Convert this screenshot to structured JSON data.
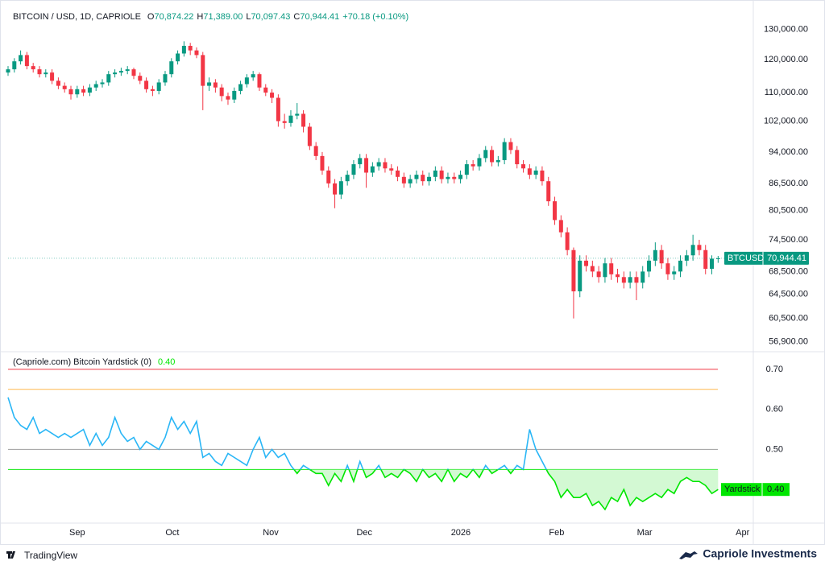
{
  "chart_data": [
    {
      "type": "candlestick",
      "title": "BITCOIN / USD, 1D, CAPRIOLE",
      "header_values": [
        {
          "key": "O",
          "text": "70,874.22"
        },
        {
          "key": "H",
          "text": "71,389.00"
        },
        {
          "key": "L",
          "text": "70,097.43"
        },
        {
          "key": "C",
          "text": "70,944.41"
        }
      ],
      "change_label": "+70.18 (+0.10%)",
      "log_scale": true,
      "up_color": "#089981",
      "down_color": "#f23645",
      "xlim": [
        0,
        118.6
      ],
      "ylim": [
        55400,
        137600
      ],
      "yticks": [
        {
          "value": 130000,
          "label": "130,000.00"
        },
        {
          "value": 120000,
          "label": "120,000.00"
        },
        {
          "value": 110000,
          "label": "110,000.00"
        },
        {
          "value": 102000,
          "label": "102,000.00"
        },
        {
          "value": 94000,
          "label": "94,000.00"
        },
        {
          "value": 86500,
          "label": "86,500.00"
        },
        {
          "value": 80500,
          "label": "80,500.00"
        },
        {
          "value": 74500,
          "label": "74,500.00"
        },
        {
          "value": 68500,
          "label": "68,500.00"
        },
        {
          "value": 64500,
          "label": "64,500.00"
        },
        {
          "value": 60500,
          "label": "60,500.00"
        },
        {
          "value": 56900,
          "label": "56,900.00"
        }
      ],
      "series": [
        {
          "name": "BTCUSD",
          "last_value_label": "70,944.41",
          "open": [
            116000,
            117000,
            119500,
            121500,
            118000,
            117000,
            115500,
            116000,
            113500,
            112000,
            111000,
            109500,
            111000,
            110000,
            111500,
            112500,
            113000,
            115500,
            116000,
            116500,
            117000,
            115000,
            113500,
            111000,
            110500,
            113000,
            115500,
            119500,
            122000,
            124500,
            123000,
            121500,
            112000,
            113000,
            111500,
            109000,
            108000,
            110500,
            112500,
            114500,
            115500,
            111500,
            110000,
            108500,
            102000,
            101500,
            103500,
            104000,
            100500,
            95500,
            93000,
            89500,
            86500,
            84000,
            87000,
            88500,
            91000,
            92500,
            89000,
            90500,
            91500,
            90000,
            89500,
            88000,
            86500,
            87500,
            88500,
            87000,
            88000,
            89500,
            87500,
            88000,
            87500,
            88500,
            91000,
            90500,
            92500,
            94500,
            91500,
            92000,
            96500,
            94500,
            91000,
            90000,
            88500,
            89500,
            87000,
            82500,
            78500,
            76000,
            72500,
            65000,
            70500,
            69500,
            68500,
            67500,
            70000,
            68000,
            67500,
            66500,
            67500,
            66500,
            68500,
            70500,
            72500,
            70000,
            68000,
            68500,
            70500,
            71500,
            73500,
            72500,
            69000,
            70874.22
          ],
          "high": [
            118000,
            120500,
            123000,
            122500,
            119000,
            118000,
            117000,
            117000,
            114500,
            113000,
            112000,
            112000,
            112000,
            112500,
            113500,
            114000,
            116500,
            117000,
            117500,
            118000,
            117500,
            116000,
            114500,
            112000,
            114000,
            116500,
            120500,
            123000,
            126000,
            125500,
            124000,
            122500,
            114500,
            114000,
            112500,
            110000,
            111500,
            113500,
            115500,
            116500,
            116000,
            112500,
            111000,
            109500,
            104000,
            105000,
            107000,
            105000,
            101500,
            96500,
            94000,
            90500,
            87500,
            88000,
            89500,
            92000,
            93500,
            93500,
            91500,
            92500,
            92500,
            91000,
            90500,
            89000,
            88500,
            89500,
            89500,
            89000,
            90500,
            90500,
            89000,
            89000,
            89500,
            92000,
            92000,
            93500,
            95500,
            95500,
            93000,
            97500,
            97500,
            95500,
            92000,
            91000,
            90500,
            90500,
            88000,
            83500,
            79500,
            77000,
            73000,
            71500,
            71500,
            70500,
            69500,
            71000,
            71000,
            69000,
            68500,
            68500,
            68500,
            69500,
            71500,
            74000,
            73500,
            71000,
            69500,
            71500,
            72500,
            75500,
            74500,
            73500,
            71500,
            71389
          ],
          "low": [
            115000,
            116000,
            118500,
            117000,
            116000,
            114500,
            114500,
            112500,
            111000,
            110000,
            108000,
            108500,
            109000,
            109000,
            110500,
            111500,
            112000,
            114500,
            115000,
            115500,
            114000,
            112500,
            110000,
            109000,
            109500,
            112000,
            114500,
            118500,
            121000,
            121500,
            120500,
            105000,
            110500,
            110000,
            107500,
            106500,
            107000,
            109500,
            111500,
            113500,
            110500,
            109000,
            107000,
            100500,
            100000,
            100500,
            102500,
            99000,
            94500,
            92000,
            88500,
            85500,
            81000,
            83000,
            86000,
            87500,
            90000,
            85500,
            88000,
            89500,
            89000,
            88500,
            87000,
            85500,
            85500,
            86500,
            86000,
            86000,
            87000,
            86500,
            86500,
            86500,
            86500,
            87500,
            89500,
            89500,
            91500,
            90500,
            90500,
            91000,
            93500,
            90000,
            89000,
            87500,
            87500,
            86000,
            81500,
            77500,
            75000,
            71500,
            60500,
            64000,
            68500,
            67500,
            66500,
            66500,
            67000,
            66500,
            65500,
            65500,
            63500,
            65500,
            67500,
            69500,
            69000,
            67000,
            67000,
            67500,
            69500,
            70500,
            71500,
            68000,
            68000,
            70097.43
          ],
          "close": [
            117000,
            119500,
            121500,
            118000,
            117000,
            115500,
            116000,
            113500,
            112000,
            111000,
            109500,
            111000,
            110000,
            111500,
            112500,
            113000,
            115500,
            116000,
            116500,
            117000,
            115000,
            113500,
            111000,
            110500,
            113000,
            115500,
            119500,
            122000,
            124500,
            123000,
            121500,
            112000,
            113000,
            111500,
            109000,
            108000,
            110500,
            112500,
            114500,
            115500,
            111500,
            110000,
            108500,
            102000,
            101500,
            103500,
            104000,
            100500,
            95500,
            93000,
            89500,
            86500,
            84000,
            87000,
            88500,
            91000,
            92500,
            89000,
            90500,
            91500,
            90000,
            89500,
            88000,
            86500,
            87500,
            88500,
            87000,
            88000,
            89500,
            87500,
            88000,
            87500,
            88500,
            91000,
            90500,
            92500,
            94500,
            91500,
            92000,
            96500,
            94500,
            91000,
            90000,
            88500,
            89500,
            87000,
            82500,
            78500,
            76000,
            72500,
            65000,
            70500,
            69500,
            68500,
            67500,
            70000,
            68000,
            67500,
            66500,
            67500,
            66500,
            68500,
            70500,
            72500,
            70000,
            68000,
            68500,
            70500,
            71500,
            73500,
            72500,
            69000,
            70874,
            70944.41
          ]
        }
      ]
    },
    {
      "type": "line",
      "title": "(Capriole.com) Bitcoin Yardstick (0)",
      "xlim": [
        0,
        118.6
      ],
      "xticks": [
        {
          "value": 11,
          "label": "Sep"
        },
        {
          "value": 26.15,
          "label": "Oct"
        },
        {
          "value": 41.8,
          "label": "Nov"
        },
        {
          "value": 56.7,
          "label": "Dec"
        },
        {
          "value": 72.05,
          "label": "2026"
        },
        {
          "value": 87.3,
          "label": "Feb"
        },
        {
          "value": 101.3,
          "label": "Mar"
        },
        {
          "value": 116.9,
          "label": "Apr"
        }
      ],
      "ylim": [
        0.316,
        0.744
      ],
      "yticks": [
        {
          "value": 0.7,
          "label": "0.70"
        },
        {
          "value": 0.6,
          "label": "0.60"
        },
        {
          "value": 0.5,
          "label": "0.50"
        }
      ],
      "levels": [
        {
          "value": 0.7,
          "color": "#f23645"
        },
        {
          "value": 0.65,
          "color": "#ffb74d"
        },
        {
          "value": 0.5,
          "color": "#9e9e9e"
        },
        {
          "value": 0.45,
          "color": "#00e600"
        }
      ],
      "split": 0.45,
      "color_above": "#29b6f6",
      "color_below": "#00e600",
      "fill_color": "#c8f7c8",
      "series": [
        {
          "name": "Yardstick",
          "last_value_label": "0.40",
          "values": [
            0.63,
            0.58,
            0.56,
            0.55,
            0.58,
            0.54,
            0.55,
            0.54,
            0.53,
            0.54,
            0.53,
            0.54,
            0.55,
            0.51,
            0.54,
            0.51,
            0.53,
            0.58,
            0.54,
            0.52,
            0.53,
            0.5,
            0.52,
            0.51,
            0.5,
            0.53,
            0.58,
            0.55,
            0.57,
            0.54,
            0.57,
            0.48,
            0.49,
            0.47,
            0.46,
            0.49,
            0.48,
            0.47,
            0.46,
            0.5,
            0.53,
            0.48,
            0.5,
            0.48,
            0.49,
            0.46,
            0.44,
            0.46,
            0.45,
            0.44,
            0.44,
            0.41,
            0.44,
            0.42,
            0.46,
            0.42,
            0.47,
            0.43,
            0.44,
            0.46,
            0.43,
            0.44,
            0.43,
            0.45,
            0.44,
            0.42,
            0.45,
            0.43,
            0.44,
            0.42,
            0.45,
            0.42,
            0.44,
            0.43,
            0.45,
            0.43,
            0.46,
            0.44,
            0.45,
            0.46,
            0.44,
            0.46,
            0.45,
            0.55,
            0.5,
            0.47,
            0.44,
            0.42,
            0.38,
            0.4,
            0.38,
            0.38,
            0.39,
            0.36,
            0.37,
            0.35,
            0.38,
            0.37,
            0.4,
            0.36,
            0.38,
            0.37,
            0.38,
            0.39,
            0.38,
            0.4,
            0.39,
            0.42,
            0.43,
            0.42,
            0.42,
            0.41,
            0.39,
            0.4
          ]
        }
      ]
    }
  ],
  "footer": {
    "left": "TradingView",
    "right": "Capriole Investments"
  }
}
